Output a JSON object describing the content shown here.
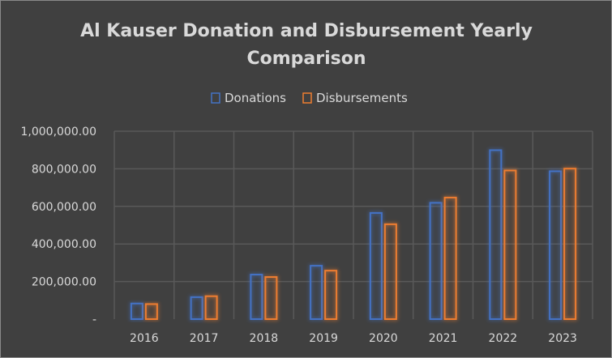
{
  "chart_data": {
    "type": "bar",
    "title": [
      "Al Kauser Donation and Disbursement Yearly",
      "Comparison"
    ],
    "categories": [
      "2016",
      "2017",
      "2018",
      "2019",
      "2020",
      "2021",
      "2022",
      "2023"
    ],
    "series": [
      {
        "name": "Donations",
        "color": "#4472c4",
        "values": [
          83000,
          117000,
          237000,
          284000,
          565000,
          619000,
          899000,
          787000
        ]
      },
      {
        "name": "Disbursements",
        "color": "#ed7d31",
        "values": [
          80000,
          122000,
          224000,
          258000,
          505000,
          647000,
          791000,
          801000
        ]
      }
    ],
    "xlabel": "",
    "ylabel": "",
    "ylim": [
      0,
      1000000
    ],
    "yticks": [
      0,
      200000,
      400000,
      600000,
      800000,
      1000000
    ],
    "ytick_labels": [
      "-",
      "200,000.00",
      "400,000.00",
      "600,000.00",
      "800,000.00",
      "1,000,000.00"
    ],
    "grid": true,
    "legend": "top"
  }
}
